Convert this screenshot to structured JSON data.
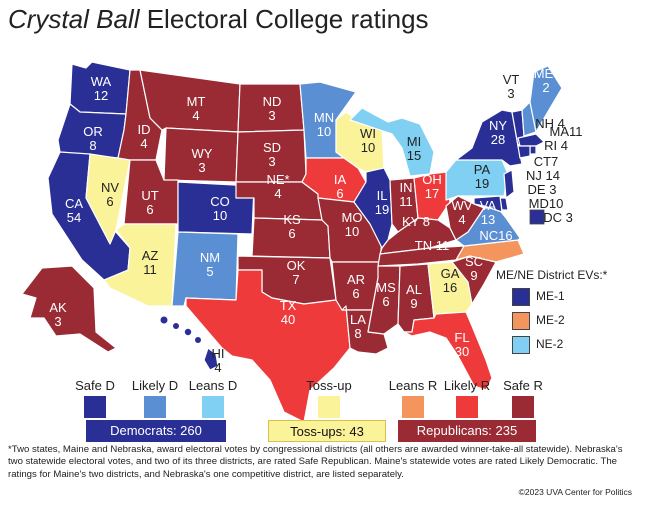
{
  "title": {
    "italic_part": "Crystal Ball",
    "rest": "Electoral College ratings"
  },
  "colors": {
    "safe_d": "#2a2f95",
    "likely_d": "#5b8fd3",
    "leans_d": "#7fd0f2",
    "tossup": "#fbf39a",
    "leans_r": "#f4955d",
    "likely_r": "#ee3a3a",
    "safe_r": "#9a2a33",
    "border": "#ffffff"
  },
  "states": {
    "WA": {
      "label": "WA\n12",
      "rating": "safe_d"
    },
    "OR": {
      "label": "OR\n8",
      "rating": "safe_d"
    },
    "CA": {
      "label": "CA\n54",
      "rating": "safe_d"
    },
    "NV": {
      "label": "NV\n6",
      "rating": "tossup"
    },
    "ID": {
      "label": "ID\n4",
      "rating": "safe_r"
    },
    "MT": {
      "label": "MT\n4",
      "rating": "safe_r"
    },
    "WY": {
      "label": "WY\n3",
      "rating": "safe_r"
    },
    "UT": {
      "label": "UT\n6",
      "rating": "safe_r"
    },
    "AZ": {
      "label": "AZ\n11",
      "rating": "tossup"
    },
    "CO": {
      "label": "CO\n10",
      "rating": "safe_d"
    },
    "NM": {
      "label": "NM\n5",
      "rating": "likely_d"
    },
    "ND": {
      "label": "ND\n3",
      "rating": "safe_r"
    },
    "SD": {
      "label": "SD\n3",
      "rating": "safe_r"
    },
    "NE": {
      "label": "NE*\n4",
      "rating": "safe_r"
    },
    "KS": {
      "label": "KS\n6",
      "rating": "safe_r"
    },
    "OK": {
      "label": "OK\n7",
      "rating": "safe_r"
    },
    "TX": {
      "label": "TX\n40",
      "rating": "likely_r"
    },
    "MN": {
      "label": "MN\n10",
      "rating": "likely_d"
    },
    "IA": {
      "label": "IA\n6",
      "rating": "likely_r"
    },
    "MO": {
      "label": "MO\n10",
      "rating": "safe_r"
    },
    "AR": {
      "label": "AR\n6",
      "rating": "safe_r"
    },
    "LA": {
      "label": "LA\n8",
      "rating": "safe_r"
    },
    "WI": {
      "label": "WI\n10",
      "rating": "tossup"
    },
    "IL": {
      "label": "IL\n19",
      "rating": "safe_d"
    },
    "MI": {
      "label": "MI\n15",
      "rating": "leans_d"
    },
    "IN": {
      "label": "IN\n11",
      "rating": "safe_r"
    },
    "OH": {
      "label": "OH\n17",
      "rating": "likely_r"
    },
    "KY": {
      "label": "KY 8",
      "rating": "safe_r"
    },
    "TN": {
      "label": "TN 11",
      "rating": "safe_r"
    },
    "MS": {
      "label": "MS\n6",
      "rating": "safe_r"
    },
    "AL": {
      "label": "AL\n9",
      "rating": "safe_r"
    },
    "GA": {
      "label": "GA\n16",
      "rating": "tossup"
    },
    "FL": {
      "label": "FL\n30",
      "rating": "likely_r"
    },
    "SC": {
      "label": "SC\n9",
      "rating": "safe_r"
    },
    "NC": {
      "label": "NC16",
      "rating": "leans_r"
    },
    "VA": {
      "label": "VA\n13",
      "rating": "likely_d"
    },
    "WV": {
      "label": "WV\n4",
      "rating": "safe_r"
    },
    "PA": {
      "label": "PA\n19",
      "rating": "leans_d"
    },
    "NY": {
      "label": "NY\n28",
      "rating": "safe_d"
    },
    "VT": {
      "label": "VT\n3",
      "rating": "safe_d"
    },
    "NH": {
      "label": "NH 4",
      "rating": "likely_d"
    },
    "ME": {
      "label": "ME*\n2",
      "rating": "likely_d"
    },
    "MA": {
      "label": "MA11",
      "rating": "safe_d"
    },
    "RI": {
      "label": "RI 4",
      "rating": "safe_d"
    },
    "CT": {
      "label": "CT7",
      "rating": "safe_d"
    },
    "NJ": {
      "label": "NJ 14",
      "rating": "safe_d"
    },
    "DE": {
      "label": "DE 3",
      "rating": "safe_d"
    },
    "MD": {
      "label": "MD10",
      "rating": "safe_d"
    },
    "DC": {
      "label": "DC 3",
      "rating": "safe_d"
    },
    "AK": {
      "label": "AK\n3",
      "rating": "safe_r"
    },
    "HI": {
      "label": "HI\n4",
      "rating": "safe_d"
    }
  },
  "district_legend": {
    "title": "ME/NE District EVs:*",
    "items": [
      {
        "label": "ME-1",
        "rating": "safe_d"
      },
      {
        "label": "ME-2",
        "rating": "leans_r"
      },
      {
        "label": "NE-2",
        "rating": "leans_d"
      }
    ]
  },
  "legend": [
    {
      "label": "Safe D",
      "rating": "safe_d"
    },
    {
      "label": "Likely D",
      "rating": "likely_d"
    },
    {
      "label": "Leans D",
      "rating": "leans_d"
    },
    {
      "label": "Toss-up",
      "rating": "tossup"
    },
    {
      "label": "Leans R",
      "rating": "leans_r"
    },
    {
      "label": "Likely R",
      "rating": "likely_r"
    },
    {
      "label": "Safe R",
      "rating": "safe_r"
    }
  ],
  "totals": {
    "democrats": "Democrats: 260",
    "tossups": "Toss-ups: 43",
    "republicans": "Republicans: 235"
  },
  "note": "*Two states, Maine and Nebraska, award electoral votes by congressional districts (all others are awarded winner-take-all statewide). Nebraska's two statewide electoral votes, and two of its three districts, are rated Safe Republican. Maine's statewide votes are rated Likely Democratic. The ratings for Maine's two districts, and Nebraska's one competitive district, are listed separately.",
  "copyright": "©2023 UVA Center for Politics"
}
